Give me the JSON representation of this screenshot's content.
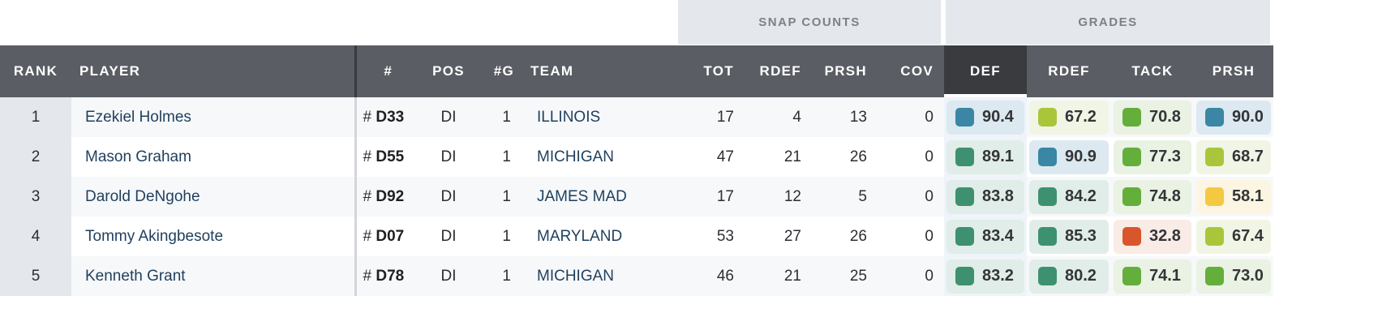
{
  "groups": {
    "snap_counts": "SNAP COUNTS",
    "grades": "GRADES"
  },
  "columns": {
    "rank": "RANK",
    "player": "PLAYER",
    "number": "#",
    "pos": "POS",
    "games": "#G",
    "team": "TEAM",
    "tot": "TOT",
    "rdef": "RDEF",
    "prsh": "PRSH",
    "cov": "COV",
    "g_def": "DEF",
    "g_rdef": "RDEF",
    "g_tack": "TACK",
    "g_prsh": "PRSH"
  },
  "grade_colors": {
    "elite": {
      "mark": "#3a86a4",
      "bg": "#dde9f0"
    },
    "high": {
      "mark": "#3e9170",
      "bg": "#e1ede8"
    },
    "good": {
      "mark": "#64ae3c",
      "bg": "#e9f2e3"
    },
    "average": {
      "mark": "#a9c63a",
      "bg": "#f1f5e5"
    },
    "below": {
      "mark": "#f5c842",
      "bg": "#fbf5e2"
    },
    "poor": {
      "mark": "#d9552b",
      "bg": "#f9ebe5"
    }
  },
  "rows": [
    {
      "rank": "1",
      "player": "Ezekiel Holmes",
      "hash": "#",
      "jersey": "D33",
      "pos": "DI",
      "games": "1",
      "team": "ILLINOIS",
      "tot": "17",
      "rdef": "4",
      "prsh": "13",
      "cov": "0",
      "g_def": "90.4",
      "g_rdef": "67.2",
      "g_tack": "70.8",
      "g_prsh": "90.0"
    },
    {
      "rank": "2",
      "player": "Mason Graham",
      "hash": "#",
      "jersey": "D55",
      "pos": "DI",
      "games": "1",
      "team": "MICHIGAN",
      "tot": "47",
      "rdef": "21",
      "prsh": "26",
      "cov": "0",
      "g_def": "89.1",
      "g_rdef": "90.9",
      "g_tack": "77.3",
      "g_prsh": "68.7"
    },
    {
      "rank": "3",
      "player": "Darold DeNgohe",
      "hash": "#",
      "jersey": "D92",
      "pos": "DI",
      "games": "1",
      "team": "JAMES MAD",
      "tot": "17",
      "rdef": "12",
      "prsh": "5",
      "cov": "0",
      "g_def": "83.8",
      "g_rdef": "84.2",
      "g_tack": "74.8",
      "g_prsh": "58.1"
    },
    {
      "rank": "4",
      "player": "Tommy Akingbesote",
      "hash": "#",
      "jersey": "D07",
      "pos": "DI",
      "games": "1",
      "team": "MARYLAND",
      "tot": "53",
      "rdef": "27",
      "prsh": "26",
      "cov": "0",
      "g_def": "83.4",
      "g_rdef": "85.3",
      "g_tack": "32.8",
      "g_prsh": "67.4"
    },
    {
      "rank": "5",
      "player": "Kenneth Grant",
      "hash": "#",
      "jersey": "D78",
      "pos": "DI",
      "games": "1",
      "team": "MICHIGAN",
      "tot": "46",
      "rdef": "21",
      "prsh": "25",
      "cov": "0",
      "g_def": "83.2",
      "g_rdef": "80.2",
      "g_tack": "74.1",
      "g_prsh": "73.0"
    }
  ]
}
